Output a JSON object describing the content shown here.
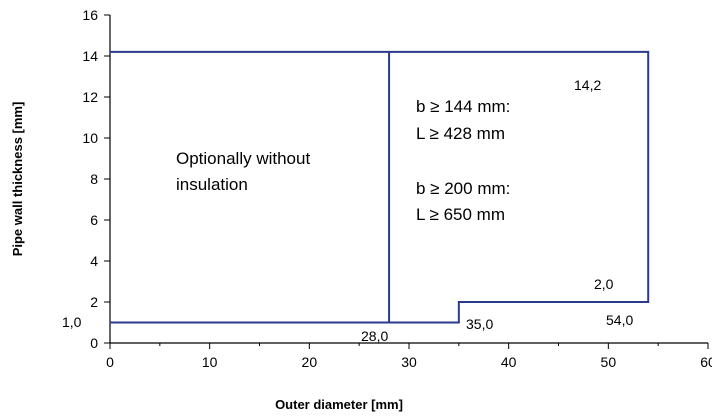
{
  "chart_data": {
    "type": "line",
    "xlabel": "Outer  diameter [mm]",
    "ylabel": "Pipe wall thickness [mm]",
    "xlim": [
      0,
      60
    ],
    "ylim": [
      0,
      16
    ],
    "xticks": [
      0,
      10,
      20,
      30,
      40,
      50,
      60
    ],
    "yticks": [
      0,
      2,
      4,
      6,
      8,
      10,
      12,
      14,
      16
    ],
    "xtick_labels": [
      "0",
      "10",
      "20",
      "30",
      "40",
      "50",
      "60"
    ],
    "ytick_labels": [
      "0",
      "2",
      "4",
      "6",
      "8",
      "10",
      "12",
      "14",
      "16"
    ],
    "grid": false,
    "line_color": "#2b3a8c",
    "series": [
      {
        "x": [
          0,
          35,
          35,
          54,
          54,
          0
        ],
        "y": [
          1,
          1,
          2,
          2,
          14.2,
          14.2
        ]
      },
      {
        "x": [
          28,
          28
        ],
        "y": [
          1,
          14.2
        ]
      }
    ],
    "region_labels": {
      "left": [
        "Optionally without",
        "insulation"
      ],
      "right": [
        "b ≥ 144 mm:",
        "L ≥ 428 mm",
        "b ≥ 200 mm:",
        "L ≥ 650 mm"
      ]
    },
    "annotations": {
      "y_1_0": "1,0",
      "x_28_0": "28,0",
      "x_35_0": "35,0",
      "x_54_0": "54,0",
      "y_2_0": "2,0",
      "y_14_2": "14,2"
    }
  }
}
